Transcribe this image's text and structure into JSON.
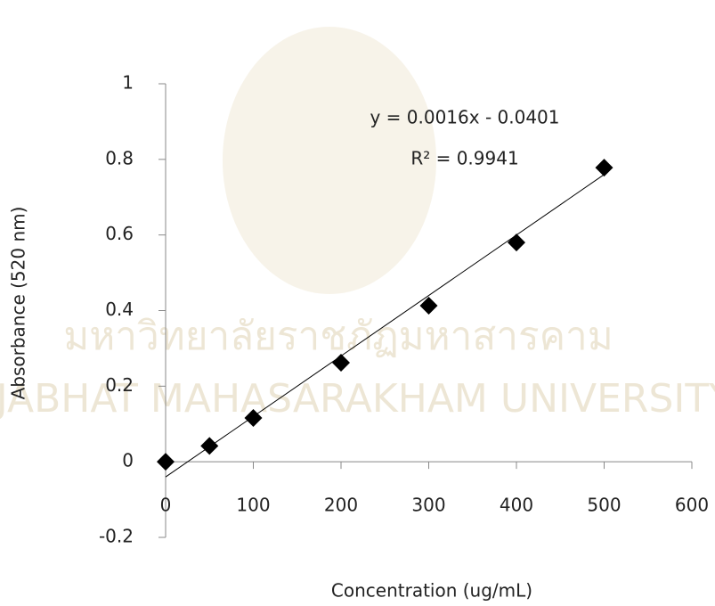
{
  "chart_data": {
    "type": "scatter",
    "watermark": [
      "มหาวิทยาลัยราชภัฏมหาสารคาม",
      "RAJABHAT MAHASARAKHAM UNIVERSITY"
    ],
    "x_label": "Concentration (ug/mL)",
    "y_label": "Absorbance (520 nm)",
    "series": [
      {
        "color": "#000000",
        "x": [
          0,
          50,
          100,
          200,
          300,
          400,
          500
        ],
        "values": [
          0.0,
          0.042,
          0.116,
          0.262,
          0.413,
          0.58,
          0.778
        ]
      }
    ],
    "trendline": {
      "slope": 0.0016,
      "intercept": -0.0401,
      "color": "#000000",
      "equation": "y = 0.0016x - 0.0401",
      "r_squared_label": "R² = 0.9941"
    },
    "xlim": [
      0,
      600
    ],
    "xticks": [
      0,
      100,
      200,
      300,
      400,
      500,
      600
    ],
    "ylim": [
      -0.2,
      1
    ],
    "yticks": [
      -0.2,
      0,
      0.2,
      0.4,
      0.6,
      0.8,
      1
    ]
  }
}
